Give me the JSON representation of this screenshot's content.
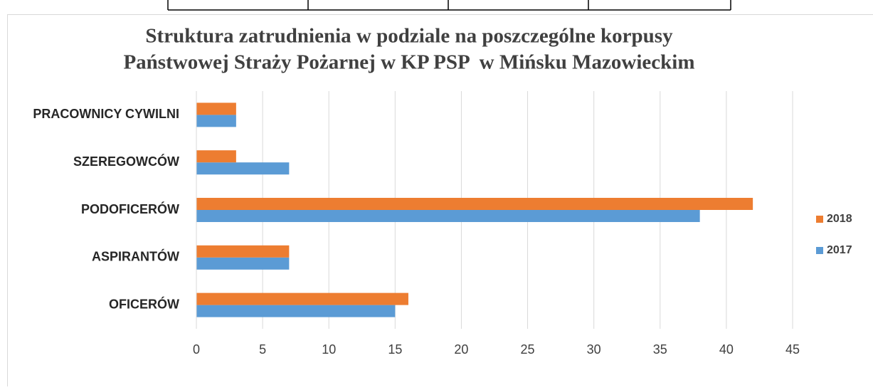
{
  "chart_data": {
    "type": "bar",
    "orientation": "horizontal",
    "title": [
      "Struktura zatrudnienia w podziale na poszczególne korpusy",
      "Państwowej Straży Pożarnej w KP PSP  w Mińsku Mazowieckim"
    ],
    "categories": [
      "OFICERÓW",
      "ASPIRANTÓW",
      "PODOFICERÓW",
      "SZEREGOWCÓW",
      "PRACOWNICY CYWILNI"
    ],
    "series": [
      {
        "name": "2017",
        "color": "#5b9bd5",
        "values": [
          15,
          7,
          38,
          7,
          3
        ]
      },
      {
        "name": "2018",
        "color": "#ed7d31",
        "values": [
          16,
          7,
          42,
          3,
          3
        ]
      }
    ],
    "xlim": [
      0,
      45
    ],
    "xticks": [
      0,
      5,
      10,
      15,
      20,
      25,
      30,
      35,
      40,
      45
    ],
    "grid": true,
    "legend": "right"
  }
}
